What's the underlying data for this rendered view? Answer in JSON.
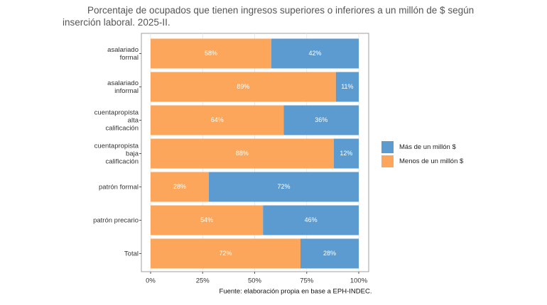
{
  "chart_data": {
    "type": "stacked-barh",
    "title": "Porcentaje de ocupados que tienen ingresos superiores o inferiores a un millón de $ según inserción laboral. 2025-II.",
    "source": "Fuente: elaboración propia en base a EPH-INDEC.",
    "categories": [
      "asalariado\nformal",
      "asalariado\ninformal",
      "cuentapropista\nalta\ncalificación",
      "cuentapropista\nbaja\ncalificación",
      "patrón formal",
      "patrón precario",
      "Total"
    ],
    "series": [
      {
        "name": "Más de un millón $",
        "color": "#5b9bd0",
        "values": [
          42,
          11,
          36,
          12,
          72,
          46,
          28
        ],
        "value_labels": [
          "42%",
          "11%",
          "36%",
          "12%",
          "72%",
          "46%",
          "28%"
        ]
      },
      {
        "name": "Menos de un millón $",
        "color": "#fba65a",
        "values": [
          58,
          89,
          64,
          88,
          28,
          54,
          72
        ],
        "value_labels": [
          "58%",
          "89%",
          "64%",
          "88%",
          "28%",
          "54%",
          "72%"
        ]
      }
    ],
    "xlim": [
      0,
      100
    ],
    "xticks": [
      {
        "value": 0,
        "label": "0%"
      },
      {
        "value": 25,
        "label": "25%"
      },
      {
        "value": 50,
        "label": "50%"
      },
      {
        "value": 75,
        "label": "75%"
      },
      {
        "value": 100,
        "label": "100%"
      }
    ],
    "grid": true
  }
}
